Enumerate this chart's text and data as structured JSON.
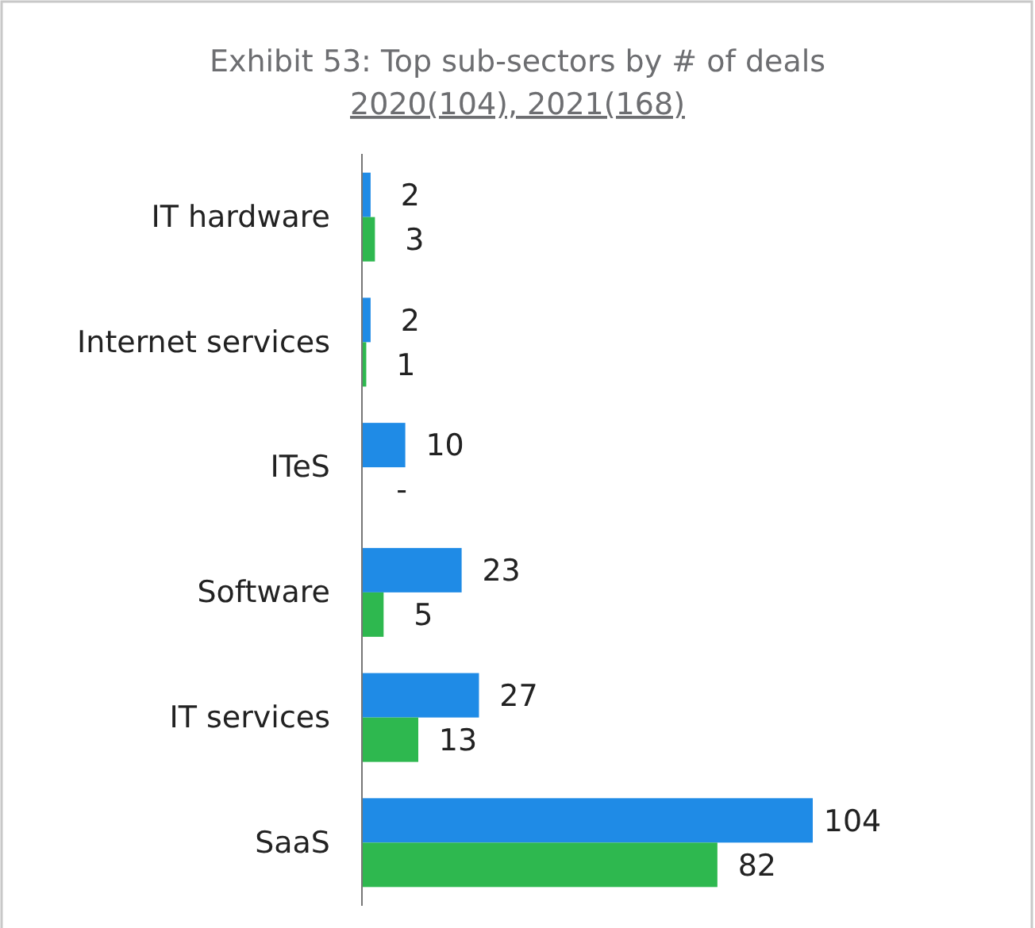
{
  "chart_data": {
    "type": "bar",
    "orientation": "horizontal",
    "title": "Exhibit 53: Top sub-sectors by # of deals",
    "subtitle": "2020(104), 2021(168)",
    "categories": [
      "IT hardware",
      "Internet services",
      "ITeS",
      "Software",
      "IT services",
      "SaaS"
    ],
    "series": [
      {
        "color": "#1f8be6",
        "values": [
          2,
          2,
          10,
          23,
          27,
          104
        ],
        "value_labels": [
          "2",
          "2",
          "10",
          "23",
          "27",
          "104"
        ]
      },
      {
        "color": "#2eb84f",
        "values": [
          3,
          1,
          0,
          5,
          13,
          82
        ],
        "value_labels": [
          "3",
          "1",
          "-",
          "5",
          "13",
          "82"
        ]
      }
    ]
  }
}
